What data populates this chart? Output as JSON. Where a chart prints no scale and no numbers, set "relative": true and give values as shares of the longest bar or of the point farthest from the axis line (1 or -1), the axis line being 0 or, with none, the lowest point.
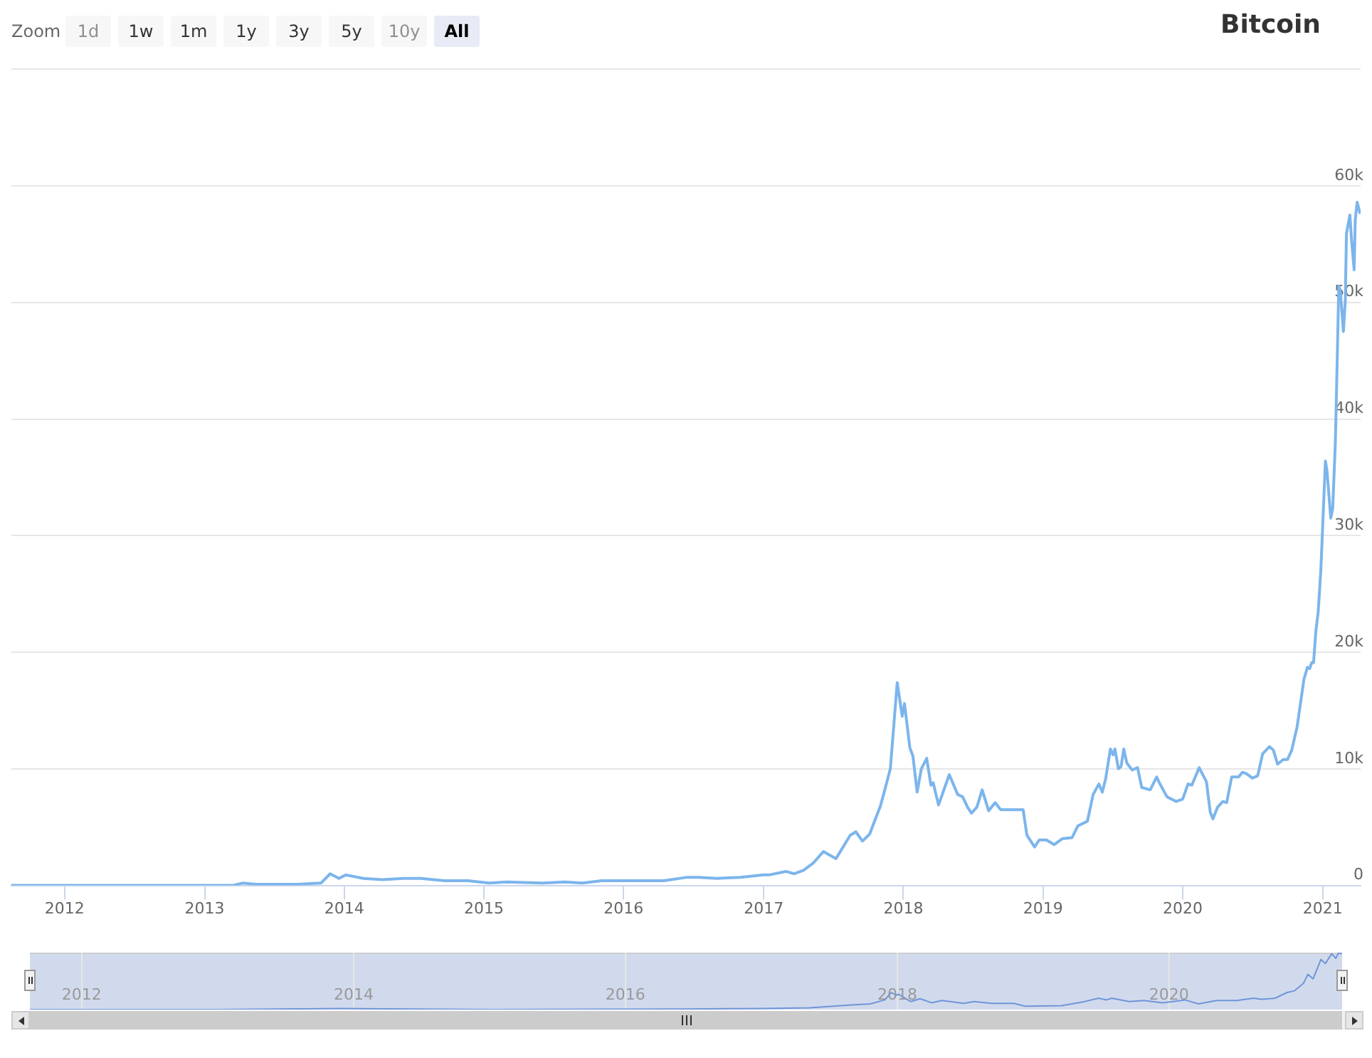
{
  "chart_data": [
    {
      "type": "line",
      "title": "Bitcoin",
      "annotations": [
        "Zoom",
        "1d",
        "1w",
        "1m",
        "1y",
        "3y",
        "5y",
        "10y",
        "All"
      ],
      "x": [
        "2011-08-15",
        "2012-01-01",
        "2012-08-15",
        "2013-01-01",
        "2013-03-15",
        "2013-04-10",
        "2013-05-15",
        "2013-09-01",
        "2013-11-01",
        "2013-11-25",
        "2013-12-18",
        "2014-01-05",
        "2014-02-20",
        "2014-04-10",
        "2014-06-05",
        "2014-07-20",
        "2014-09-20",
        "2014-11-20",
        "2015-01-15",
        "2015-03-01",
        "2015-06-01",
        "2015-08-01",
        "2015-09-15",
        "2015-11-05",
        "2015-12-20",
        "2016-02-01",
        "2016-04-15",
        "2016-06-15",
        "2016-07-15",
        "2016-09-01",
        "2016-11-01",
        "2017-01-01",
        "2017-01-15",
        "2017-02-28",
        "2017-03-22",
        "2017-04-15",
        "2017-05-10",
        "2017-06-06",
        "2017-07-09",
        "2017-08-15",
        "2017-08-30",
        "2017-09-16",
        "2017-10-05",
        "2017-10-20",
        "2017-11-02",
        "2017-11-12",
        "2017-11-28",
        "2017-12-16",
        "2017-12-29",
        "2018-01-04",
        "2018-01-18",
        "2018-01-26",
        "2018-02-06",
        "2018-02-17",
        "2018-03-03",
        "2018-03-14",
        "2018-03-20",
        "2018-04-03",
        "2018-05-01",
        "2018-05-23",
        "2018-06-05",
        "2018-06-18",
        "2018-06-28",
        "2018-07-12",
        "2018-07-26",
        "2018-08-12",
        "2018-08-29",
        "2018-09-12",
        "2018-11-10",
        "2018-11-20",
        "2018-12-10",
        "2018-12-22",
        "2019-01-10",
        "2019-01-30",
        "2019-02-20",
        "2019-03-18",
        "2019-04-02",
        "2019-04-27",
        "2019-05-12",
        "2019-05-27",
        "2019-06-05",
        "2019-06-14",
        "2019-06-26",
        "2019-07-03",
        "2019-07-08",
        "2019-07-17",
        "2019-07-24",
        "2019-07-31",
        "2019-08-08",
        "2019-08-22",
        "2019-09-05",
        "2019-09-16",
        "2019-10-08",
        "2019-10-25",
        "2019-11-01",
        "2019-11-21",
        "2019-12-15",
        "2020-01-01",
        "2020-01-15",
        "2020-01-25",
        "2020-02-13",
        "2020-03-03",
        "2020-03-13",
        "2020-03-20",
        "2020-04-01",
        "2020-04-15",
        "2020-04-25",
        "2020-05-08",
        "2020-05-26",
        "2020-06-05",
        "2020-06-15",
        "2020-07-01",
        "2020-07-15",
        "2020-07-28",
        "2020-08-15",
        "2020-08-25",
        "2020-09-05",
        "2020-09-20",
        "2020-10-01",
        "2020-10-12",
        "2020-10-26",
        "2020-11-13",
        "2020-11-22",
        "2020-11-28",
        "2020-12-03",
        "2020-12-08",
        "2020-12-14",
        "2020-12-20",
        "2020-12-27",
        "2021-01-08",
        "2021-01-12",
        "2021-01-22",
        "2021-01-27",
        "2021-02-03",
        "2021-02-08",
        "2021-02-12",
        "2021-02-16",
        "2021-02-24",
        "2021-03-01",
        "2021-03-04",
        "2021-03-13",
        "2021-03-17",
        "2021-03-24",
        "2021-03-27",
        "2021-04-01",
        "2021-04-08"
      ],
      "series": [
        {
          "color": "#7cb5ec",
          "values": [
            0,
            0,
            0,
            0,
            0,
            200,
            100,
            100,
            200,
            1000,
            600,
            900,
            600,
            500,
            600,
            600,
            400,
            400,
            200,
            300,
            200,
            300,
            200,
            400,
            400,
            400,
            400,
            700,
            700,
            600,
            700,
            900,
            900,
            1200,
            1000,
            1300,
            1900,
            2900,
            2300,
            4300,
            4600,
            3800,
            4400,
            5700,
            6800,
            8000,
            10000,
            17400,
            14500,
            15600,
            11800,
            11100,
            8000,
            10000,
            10900,
            8600,
            8800,
            6900,
            9500,
            7800,
            7600,
            6700,
            6200,
            6700,
            8200,
            6400,
            7100,
            6500,
            6500,
            4300,
            3300,
            3900,
            3900,
            3500,
            4000,
            4100,
            5100,
            5500,
            7800,
            8700,
            8000,
            9200,
            11700,
            11200,
            11700,
            10000,
            10200,
            11700,
            10500,
            9900,
            10100,
            8400,
            8200,
            9300,
            8800,
            7600,
            7200,
            7400,
            8700,
            8600,
            10100,
            8900,
            6300,
            5700,
            6700,
            7200,
            7100,
            9300,
            9300,
            9700,
            9600,
            9200,
            9400,
            11300,
            11900,
            11600,
            10400,
            10800,
            10800,
            11600,
            13600,
            17700,
            18700,
            18600,
            19100,
            19100,
            21800,
            23400,
            27000,
            36400,
            35600,
            31500,
            32300,
            38000,
            45300,
            51400,
            51000,
            47500,
            50200,
            55900,
            57500,
            55500,
            52800,
            57100,
            58600,
            57700
          ]
        }
      ],
      "xlim": [
        "2011-08-15",
        "2021-04-10"
      ],
      "xticks": [
        "2012",
        "2013",
        "2014",
        "2015",
        "2016",
        "2017",
        "2018",
        "2019",
        "2020",
        "2021"
      ],
      "ylim": [
        0,
        70000
      ],
      "yticks": [
        0,
        {
          "value": 10000,
          "label": "10k"
        },
        {
          "value": 20000,
          "label": "20k"
        },
        {
          "value": 30000,
          "label": "30k"
        },
        {
          "value": 40000,
          "label": "40k"
        },
        {
          "value": 50000,
          "label": "50k"
        },
        {
          "value": 60000,
          "label": "60k"
        },
        {
          "value": 70000,
          "label": null
        }
      ],
      "grid": "y",
      "marker": "none",
      "line_style": "solid"
    },
    {
      "type": "line",
      "relative": true,
      "x": [
        "2011-08-15",
        "2013-01-01",
        "2013-11-25",
        "2014-06-05",
        "2015-01-15",
        "2016-06-15",
        "2017-01-01",
        "2017-05-10",
        "2017-08-30",
        "2017-10-20",
        "2017-11-28",
        "2017-12-16",
        "2017-12-29",
        "2018-01-04",
        "2018-02-06",
        "2018-03-03",
        "2018-04-03",
        "2018-05-01",
        "2018-06-28",
        "2018-07-26",
        "2018-09-12",
        "2018-11-10",
        "2018-12-10",
        "2019-03-18",
        "2019-05-12",
        "2019-06-26",
        "2019-07-17",
        "2019-07-31",
        "2019-09-16",
        "2019-10-25",
        "2019-12-15",
        "2020-02-13",
        "2020-03-20",
        "2020-05-08",
        "2020-07-01",
        "2020-08-15",
        "2020-09-05",
        "2020-10-12",
        "2020-11-13",
        "2020-12-03",
        "2020-12-27",
        "2021-01-08",
        "2021-01-22",
        "2021-02-12",
        "2021-02-24",
        "2021-03-13",
        "2021-03-24",
        "2021-04-01",
        "2021-04-08"
      ],
      "series": [
        {
          "color": "#6f95d8",
          "values": [
            0,
            0,
            0.02,
            0.01,
            0,
            0.01,
            0.02,
            0.03,
            0.08,
            0.1,
            0.17,
            0.3,
            0.25,
            0.27,
            0.14,
            0.19,
            0.12,
            0.16,
            0.11,
            0.14,
            0.11,
            0.11,
            0.06,
            0.07,
            0.13,
            0.2,
            0.17,
            0.2,
            0.14,
            0.16,
            0.12,
            0.17,
            0.1,
            0.16,
            0.16,
            0.2,
            0.18,
            0.2,
            0.3,
            0.33,
            0.46,
            0.62,
            0.54,
            0.88,
            0.81,
            0.98,
            0.9,
            1,
            0.98
          ]
        }
      ],
      "xlim": [
        "2011-08-15",
        "2021-04-10"
      ],
      "xticks": [
        "2012",
        "2014",
        "2016",
        "2018",
        "2020"
      ],
      "grid": "x",
      "marker": "none"
    }
  ]
}
